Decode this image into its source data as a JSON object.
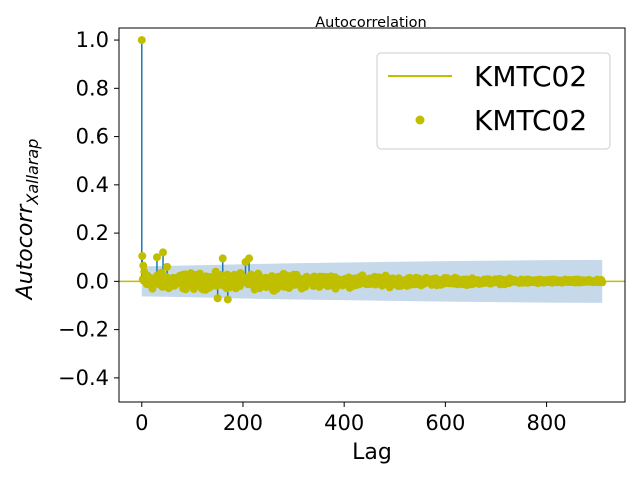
{
  "chart_data": {
    "type": "scatter",
    "title": "Autocorrelation",
    "xlabel": "Lag",
    "ylabel": "Autocorr",
    "ylabel_subscript": "Xallarap",
    "xlim": [
      -45,
      955
    ],
    "ylim": [
      -0.5,
      1.05
    ],
    "xticks": [
      0,
      200,
      400,
      600,
      800
    ],
    "yticks": [
      -0.4,
      -0.2,
      0.0,
      0.2,
      0.4,
      0.6,
      0.8,
      1.0
    ],
    "ytick_labels": [
      "−0.4",
      "−0.2",
      "0.0",
      "0.2",
      "0.4",
      "0.6",
      "0.8",
      "1.0"
    ],
    "max_lag": 910,
    "confidence_band": {
      "x": [
        0,
        100,
        200,
        300,
        400,
        500,
        600,
        700,
        800,
        910
      ],
      "upper": [
        0.062,
        0.066,
        0.071,
        0.075,
        0.078,
        0.081,
        0.084,
        0.086,
        0.088,
        0.089
      ],
      "lower": [
        -0.062,
        -0.066,
        -0.071,
        -0.075,
        -0.078,
        -0.081,
        -0.084,
        -0.086,
        -0.088,
        -0.089
      ]
    },
    "notable_points": [
      {
        "x": 0,
        "y": 1.0
      },
      {
        "x": 1,
        "y": 0.105
      },
      {
        "x": 3,
        "y": 0.065
      },
      {
        "x": 5,
        "y": 0.04
      },
      {
        "x": 30,
        "y": 0.1
      },
      {
        "x": 42,
        "y": 0.12
      },
      {
        "x": 50,
        "y": 0.06
      },
      {
        "x": 160,
        "y": 0.095
      },
      {
        "x": 205,
        "y": 0.08
      },
      {
        "x": 212,
        "y": 0.095
      },
      {
        "x": 150,
        "y": -0.07
      },
      {
        "x": 170,
        "y": -0.075
      }
    ],
    "noise_amplitude": [
      {
        "x": 0,
        "amp": 0.05
      },
      {
        "x": 300,
        "amp": 0.04
      },
      {
        "x": 500,
        "amp": 0.028
      },
      {
        "x": 700,
        "amp": 0.015
      },
      {
        "x": 910,
        "amp": 0.008
      }
    ],
    "legend": {
      "placement": "top-right",
      "entries": [
        {
          "label": "KMTC02",
          "kind": "line"
        },
        {
          "label": "KMTC02",
          "kind": "marker"
        }
      ]
    },
    "colors": {
      "stem": "#1f77b4",
      "marker": "#bfbf00",
      "zero_line": "#bfbf00",
      "band": "#c6d9ea",
      "axes": "#000000"
    }
  }
}
